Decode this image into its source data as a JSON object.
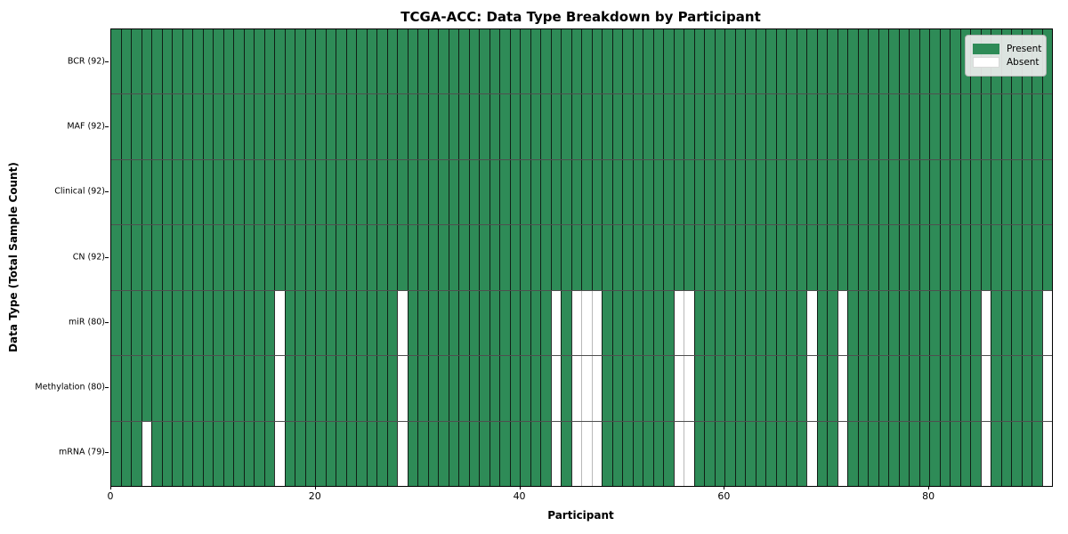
{
  "chart_data": {
    "type": "heatmap",
    "title": "TCGA-ACC: Data Type Breakdown by Participant",
    "xlabel": "Participant",
    "ylabel": "Data Type (Total Sample Count)",
    "n_participants": 92,
    "x_range": [
      0,
      92
    ],
    "x_ticks": [
      0,
      20,
      40,
      60,
      80
    ],
    "grid": false,
    "legend_position": "upper right",
    "legend": [
      {
        "label": "Present",
        "color": "#2e8b57"
      },
      {
        "label": "Absent",
        "color": "#ffffff"
      }
    ],
    "rows": [
      {
        "label": "BCR (92)",
        "present_count": 92,
        "absent_participants": []
      },
      {
        "label": "MAF (92)",
        "present_count": 92,
        "absent_participants": []
      },
      {
        "label": "Clinical (92)",
        "present_count": 92,
        "absent_participants": []
      },
      {
        "label": "CN (92)",
        "present_count": 92,
        "absent_participants": []
      },
      {
        "label": "miR (80)",
        "present_count": 80,
        "absent_participants": [
          16,
          28,
          43,
          45,
          46,
          47,
          55,
          56,
          68,
          71,
          85,
          91
        ]
      },
      {
        "label": "Methylation (80)",
        "present_count": 80,
        "absent_participants": [
          16,
          28,
          43,
          45,
          46,
          47,
          55,
          56,
          68,
          71,
          85,
          91
        ]
      },
      {
        "label": "mRNA (79)",
        "present_count": 79,
        "absent_participants": [
          3,
          16,
          28,
          43,
          45,
          46,
          47,
          55,
          56,
          68,
          71,
          85,
          91
        ]
      }
    ]
  }
}
